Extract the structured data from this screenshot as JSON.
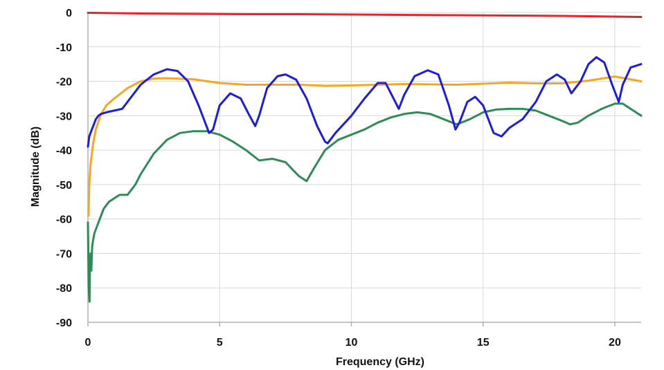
{
  "chart_data": {
    "type": "line",
    "title": "",
    "xlabel": "Frequency (GHz)",
    "ylabel": "Magnitude (dB)",
    "xlim": [
      0,
      21
    ],
    "ylim": [
      -90,
      0
    ],
    "xticks": [
      0,
      5,
      10,
      15,
      20
    ],
    "yticks": [
      0,
      -10,
      -20,
      -30,
      -40,
      -50,
      -60,
      -70,
      -80,
      -90
    ],
    "xtick_labels": [
      "0",
      "5",
      "10",
      "15",
      "20"
    ],
    "ytick_labels": [
      "0",
      "-10",
      "-20",
      "-30",
      "-40",
      "-50",
      "-60",
      "-70",
      "-80",
      "-90"
    ],
    "grid": true,
    "legend": "none",
    "series": [
      {
        "name": "red",
        "color": "#e8242a",
        "x": [
          0,
          2,
          4,
          6,
          8,
          10,
          12,
          14,
          16,
          18,
          20,
          21
        ],
        "y": [
          -0.1,
          -0.3,
          -0.4,
          -0.5,
          -0.5,
          -0.6,
          -0.7,
          -0.8,
          -0.9,
          -1.0,
          -1.2,
          -1.3
        ]
      },
      {
        "name": "orange",
        "color": "#f5a623",
        "x": [
          0.02,
          0.05,
          0.1,
          0.2,
          0.3,
          0.5,
          0.7,
          1.0,
          1.5,
          2.0,
          2.5,
          3.0,
          4.0,
          5.0,
          6.0,
          7.0,
          8.0,
          9.0,
          10.0,
          11.0,
          12.0,
          13.0,
          14.0,
          15.0,
          16.0,
          17.0,
          18.0,
          19.0,
          20.0,
          21.0
        ],
        "y": [
          -59,
          -50,
          -44,
          -38,
          -34,
          -29.5,
          -27,
          -25,
          -22,
          -20,
          -19.2,
          -19.1,
          -19.4,
          -20.5,
          -21,
          -21,
          -21,
          -21.3,
          -21.2,
          -21,
          -20.8,
          -20.9,
          -21,
          -20.7,
          -20.4,
          -20.6,
          -20.6,
          -19.8,
          -18.6,
          -20
        ]
      },
      {
        "name": "blue",
        "color": "#1c1ce0",
        "x": [
          0.0,
          0.05,
          0.1,
          0.15,
          0.2,
          0.3,
          0.4,
          0.5,
          0.7,
          1.0,
          1.3,
          1.6,
          2.0,
          2.5,
          3.0,
          3.4,
          3.8,
          4.2,
          4.5,
          4.6,
          4.75,
          5.0,
          5.4,
          5.8,
          6.1,
          6.35,
          6.5,
          6.8,
          7.2,
          7.5,
          7.9,
          8.3,
          8.7,
          9.0,
          9.1,
          9.4,
          10.0,
          10.5,
          11.0,
          11.3,
          11.6,
          11.8,
          12.0,
          12.4,
          12.9,
          13.3,
          13.7,
          13.95,
          14.1,
          14.4,
          14.7,
          15.0,
          15.4,
          15.7,
          16.0,
          16.5,
          17.0,
          17.4,
          17.8,
          18.1,
          18.35,
          18.7,
          19.0,
          19.3,
          19.6,
          19.9,
          20.15,
          20.3,
          20.6,
          21.0
        ],
        "y": [
          -39,
          -36,
          -35,
          -34,
          -33,
          -31,
          -30,
          -29.5,
          -29,
          -28.5,
          -28,
          -25,
          -21,
          -18,
          -16.5,
          -17,
          -20,
          -27,
          -33,
          -35,
          -34,
          -27,
          -23.5,
          -25,
          -29.5,
          -33,
          -30,
          -22,
          -18.5,
          -18,
          -19.5,
          -25,
          -33,
          -37.5,
          -38,
          -35,
          -30,
          -25,
          -20.5,
          -20.5,
          -25,
          -28,
          -24,
          -18.5,
          -16.8,
          -18,
          -27,
          -34,
          -32,
          -26,
          -24.5,
          -27,
          -35,
          -36,
          -33.5,
          -31,
          -26,
          -20,
          -18,
          -19.5,
          -23.5,
          -20,
          -15,
          -13,
          -14.5,
          -21,
          -26,
          -21,
          -16,
          -15
        ]
      },
      {
        "name": "green",
        "color": "#2e8b57",
        "x": [
          0.0,
          0.03,
          0.06,
          0.08,
          0.1,
          0.13,
          0.16,
          0.2,
          0.25,
          0.3,
          0.4,
          0.5,
          0.6,
          0.8,
          1.0,
          1.2,
          1.5,
          1.8,
          2.0,
          2.5,
          3.0,
          3.5,
          4.0,
          4.5,
          5.0,
          5.5,
          6.0,
          6.5,
          7.0,
          7.5,
          8.0,
          8.3,
          8.6,
          9.0,
          9.5,
          10.0,
          10.5,
          11.0,
          11.5,
          12.0,
          12.5,
          13.0,
          13.5,
          14.0,
          14.5,
          15.0,
          15.5,
          16.0,
          16.5,
          17.0,
          17.5,
          18.0,
          18.3,
          18.6,
          19.0,
          19.5,
          20.0,
          20.3,
          20.6,
          21.0
        ],
        "y": [
          -61,
          -80,
          -84,
          -72,
          -70,
          -75,
          -68,
          -66,
          -64,
          -63,
          -61,
          -59,
          -57,
          -55,
          -54,
          -53,
          -53,
          -50,
          -47,
          -41,
          -37,
          -35,
          -34.5,
          -34.5,
          -35.5,
          -37.5,
          -40,
          -43,
          -42.5,
          -43.5,
          -47.5,
          -49,
          -45,
          -40,
          -37,
          -35.5,
          -34,
          -32,
          -30.5,
          -29.5,
          -29,
          -29.5,
          -31,
          -32.5,
          -31,
          -29,
          -28.2,
          -28,
          -28,
          -28.5,
          -30,
          -31.5,
          -32.5,
          -32,
          -30,
          -28,
          -26.5,
          -26.5,
          -28,
          -30
        ]
      }
    ]
  }
}
